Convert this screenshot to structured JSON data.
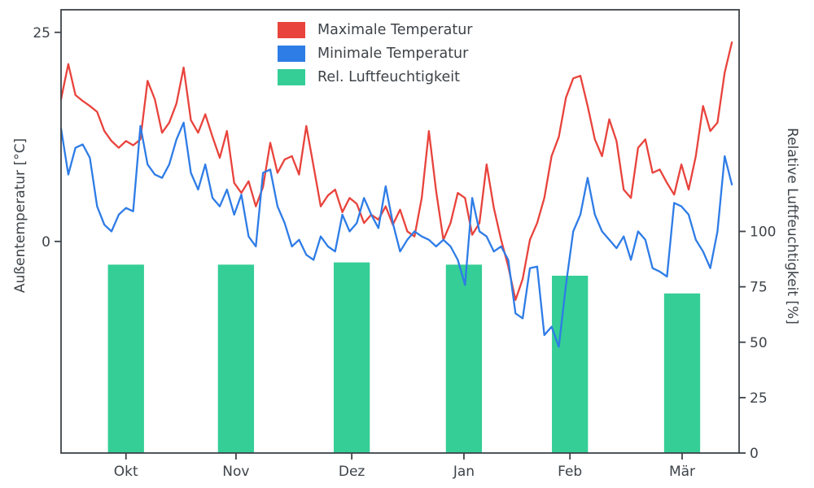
{
  "chart_data": {
    "type": "mixed-line-bar",
    "title": "",
    "xlabel": "",
    "ylabel_left": "Außentemperatur [°C]",
    "ylabel_right": "Relative Luftfeuchtigkeit [%]",
    "background": "#ffffff",
    "axis_color": "#3d4349",
    "grid": false,
    "x_range": [
      0,
      188
    ],
    "y_left": {
      "range": [
        -25.3,
        27.7
      ],
      "ticks": [
        0,
        25
      ]
    },
    "y_right": {
      "range": [
        0,
        200
      ],
      "ticks": [
        0,
        25,
        50,
        75,
        100
      ]
    },
    "x_ticks": {
      "positions": [
        18,
        48.5,
        80.6,
        111.7,
        141.1,
        172.2
      ],
      "labels": [
        "Okt",
        "Nov",
        "Dez",
        "Jan",
        "Feb",
        "Mär"
      ]
    },
    "x": [
      0,
      2,
      4,
      6,
      8,
      10,
      12,
      14,
      16,
      18,
      20,
      22,
      24,
      26,
      28,
      30,
      32,
      34,
      36,
      38,
      40,
      42,
      44,
      46,
      48,
      50,
      52,
      54,
      56,
      58,
      60,
      62,
      64,
      66,
      68,
      70,
      72,
      74,
      76,
      78,
      80,
      82,
      84,
      86,
      88,
      90,
      92,
      94,
      96,
      98,
      100,
      102,
      104,
      106,
      108,
      110,
      112,
      114,
      116,
      118,
      120,
      122,
      124,
      126,
      128,
      130,
      132,
      134,
      136,
      138,
      140,
      142,
      144,
      146,
      148,
      150,
      152,
      154,
      156,
      158,
      160,
      162,
      164,
      166,
      168,
      170,
      172,
      174,
      176,
      178,
      180,
      182,
      184,
      186
    ],
    "series": [
      {
        "name": "Maximale Temperatur",
        "color": "#e8433c",
        "axis": "left",
        "type": "line",
        "values": [
          17,
          21.2,
          17.5,
          16.8,
          16.2,
          15.5,
          13.2,
          12,
          11.2,
          12,
          11.5,
          12.2,
          19.2,
          17,
          13,
          14.2,
          16.5,
          20.8,
          14.5,
          13,
          15.2,
          12.5,
          10,
          13.2,
          7,
          5.8,
          7.2,
          4.2,
          6.5,
          11.8,
          8.2,
          9.8,
          10.2,
          8,
          13.8,
          9,
          4.2,
          5.5,
          6.2,
          3.5,
          5.2,
          4.5,
          2.2,
          3.2,
          2.6,
          4.2,
          2,
          3.8,
          1.2,
          0.6,
          5.2,
          13.2,
          6,
          0.2,
          2.2,
          5.8,
          5.2,
          0.8,
          2.2,
          9.2,
          4,
          0.2,
          -3,
          -7,
          -4.5,
          0.2,
          2.2,
          5.2,
          10.2,
          12.5,
          17.2,
          19.5,
          19.8,
          16.2,
          12.2,
          10.2,
          14.6,
          12,
          6.2,
          5.2,
          11.2,
          12.2,
          8.2,
          8.6,
          7,
          5.6,
          9.2,
          6.2,
          10.2,
          16.2,
          13.2,
          14.2,
          20.2,
          23.8
        ]
      },
      {
        "name": "Minimale Temperatur",
        "color": "#2e7ce6",
        "axis": "left",
        "type": "line",
        "values": [
          13.5,
          8,
          11.2,
          11.6,
          10,
          4.2,
          2,
          1.2,
          3.2,
          4,
          3.6,
          13.8,
          9.2,
          8,
          7.6,
          9.2,
          12.2,
          14.2,
          8.2,
          6.2,
          9.2,
          5.2,
          4.2,
          6.2,
          3.2,
          5.6,
          0.6,
          -0.6,
          8.2,
          8.6,
          4.2,
          2.2,
          -0.6,
          0.2,
          -1.6,
          -2.2,
          0.6,
          -0.6,
          -1.2,
          3.2,
          1.2,
          2.2,
          5.2,
          3.2,
          1.6,
          6.6,
          2.2,
          -1.2,
          0.2,
          1.2,
          0.6,
          0.2,
          -0.6,
          0.2,
          -0.6,
          -2.2,
          -5.2,
          5.2,
          1.2,
          0.6,
          -1.2,
          -0.6,
          -2.2,
          -8.6,
          -9.2,
          -3.2,
          -3,
          -11.2,
          -10.2,
          -12.6,
          -5.2,
          1.2,
          3.2,
          7.6,
          3.2,
          1.2,
          0.2,
          -0.8,
          0.6,
          -2.2,
          1.2,
          0.2,
          -3.2,
          -3.6,
          -4.2,
          4.6,
          4.2,
          3.2,
          0.2,
          -1.2,
          -3.2,
          1.2,
          10.2,
          6.8
        ]
      }
    ],
    "bars": {
      "name": "Rel. Luftfeuchtigkeit",
      "color": "#34ce96",
      "axis": "right",
      "centers": [
        18,
        48.5,
        80.6,
        111.7,
        141.1,
        172.2
      ],
      "width": 10,
      "categories": [
        "Okt",
        "Nov",
        "Dez",
        "Jan",
        "Feb",
        "Mär"
      ],
      "values": [
        85,
        85,
        86,
        85,
        80,
        72
      ]
    },
    "legend": {
      "position": "top-center",
      "entries": [
        {
          "label": "Maximale Temperatur",
          "color": "#e8433c"
        },
        {
          "label": "Minimale Temperatur",
          "color": "#2e7ce6"
        },
        {
          "label": "Rel. Luftfeuchtigkeit",
          "color": "#34ce96"
        }
      ]
    }
  }
}
